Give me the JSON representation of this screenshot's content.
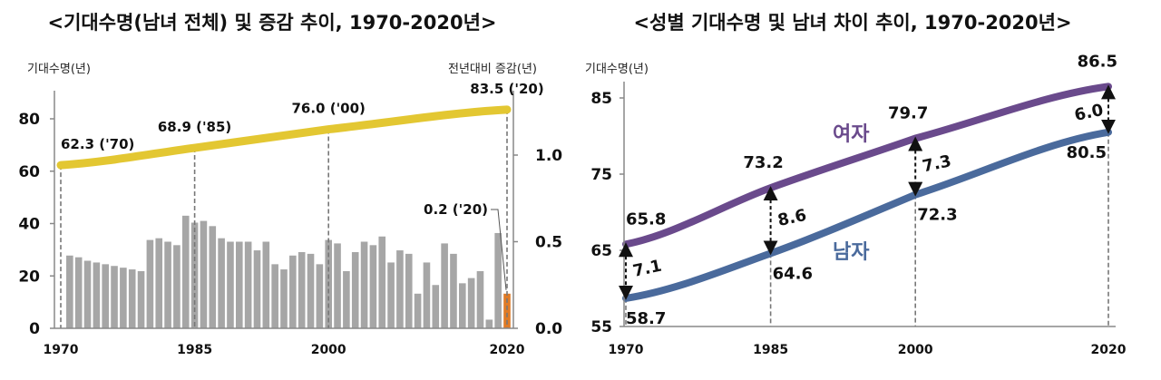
{
  "chart_data": [
    {
      "type": "bar+line",
      "title": "<기대수명(남녀 전체) 및 증감 추이, 1970-2020년>",
      "ylabel_left": "기대수명(년)",
      "ylabel_right": "전년대비 증감(년)",
      "ylim_left": [
        0,
        90
      ],
      "ylim_right": [
        0,
        1.36
      ],
      "yticks_left": [
        "0",
        "20",
        "40",
        "60",
        "80"
      ],
      "yticks_right": [
        "0.0",
        "0.5",
        "1.0"
      ],
      "xticks": [
        "1970",
        "1985",
        "2000",
        "2020"
      ],
      "grid": false,
      "colors": {
        "line": "#e3c732",
        "bar": "#a6a6a6",
        "highlight_bar": "#e07b26"
      },
      "line": {
        "x": [
          1970,
          1985,
          2000,
          2020
        ],
        "values": [
          62.3,
          68.9,
          76.0,
          83.5
        ],
        "labels": [
          "62.3 ('70)",
          "68.9 ('85)",
          "76.0 ('00)",
          "83.5 ('20)"
        ]
      },
      "bars": {
        "x": [
          1971,
          1972,
          1973,
          1974,
          1975,
          1976,
          1977,
          1978,
          1979,
          1980,
          1981,
          1982,
          1983,
          1984,
          1985,
          1986,
          1987,
          1988,
          1989,
          1990,
          1991,
          1992,
          1993,
          1994,
          1995,
          1996,
          1997,
          1998,
          1999,
          2000,
          2001,
          2002,
          2003,
          2004,
          2005,
          2006,
          2007,
          2008,
          2009,
          2010,
          2011,
          2012,
          2013,
          2014,
          2015,
          2016,
          2017,
          2018,
          2019,
          2020
        ],
        "values": [
          0.42,
          0.41,
          0.39,
          0.38,
          0.37,
          0.36,
          0.35,
          0.34,
          0.33,
          0.51,
          0.52,
          0.5,
          0.48,
          0.65,
          0.61,
          0.62,
          0.59,
          0.52,
          0.5,
          0.5,
          0.5,
          0.45,
          0.5,
          0.37,
          0.34,
          0.42,
          0.44,
          0.43,
          0.37,
          0.51,
          0.49,
          0.33,
          0.44,
          0.5,
          0.48,
          0.53,
          0.38,
          0.45,
          0.43,
          0.2,
          0.38,
          0.25,
          0.49,
          0.43,
          0.26,
          0.29,
          0.33,
          0.05,
          0.55,
          0.2
        ],
        "annotation": "0.2 ('20)"
      }
    },
    {
      "type": "line",
      "title": "<성별 기대수명 및 남녀 차이 추이, 1970-2020년>",
      "ylabel": "기대수명(년)",
      "ylim": [
        55,
        88
      ],
      "yticks": [
        "55",
        "65",
        "75",
        "85"
      ],
      "xticks": [
        "1970",
        "1985",
        "2000",
        "2020"
      ],
      "grid": false,
      "series": [
        {
          "name": "여자",
          "color": "#6a4a8c",
          "x": [
            1970,
            1985,
            2000,
            2020
          ],
          "values": [
            65.8,
            73.2,
            79.7,
            86.5
          ],
          "labels": [
            "65.8",
            "73.2",
            "79.7",
            "86.5"
          ]
        },
        {
          "name": "남자",
          "color": "#4a6a9c",
          "x": [
            1970,
            1985,
            2000,
            2020
          ],
          "values": [
            58.7,
            64.6,
            72.3,
            80.5
          ],
          "labels": [
            "58.7",
            "64.6",
            "72.3",
            "80.5"
          ]
        }
      ],
      "gaps": {
        "x": [
          1970,
          1985,
          2000,
          2020
        ],
        "labels": [
          "7.1",
          "8.6",
          "7.3",
          "6.0"
        ]
      }
    }
  ]
}
